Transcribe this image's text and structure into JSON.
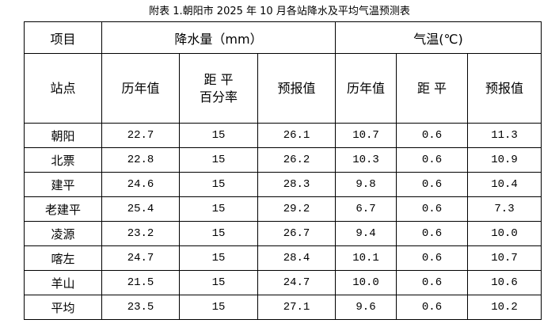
{
  "title": "附表 1.朝阳市 2025 年 10 月各站降水及平均气温预测表",
  "table": {
    "group_header": {
      "item": "项目",
      "precip": "降水量（mm）",
      "temp": "气温(℃)"
    },
    "columns": [
      "站点",
      "历年值",
      [
        "距 平",
        "百分率"
      ],
      "预报值",
      "历年值",
      "距 平",
      "预报值"
    ],
    "rows": [
      [
        "朝阳",
        "22.7",
        "15",
        "26.1",
        "10.7",
        "0.6",
        "11.3"
      ],
      [
        "北票",
        "22.8",
        "15",
        "26.2",
        "10.3",
        "0.6",
        "10.9"
      ],
      [
        "建平",
        "24.6",
        "15",
        "28.3",
        "9.8",
        "0.6",
        "10.4"
      ],
      [
        "老建平",
        "25.4",
        "15",
        "29.2",
        "6.7",
        "0.6",
        "7.3"
      ],
      [
        "凌源",
        "23.2",
        "15",
        "26.7",
        "9.4",
        "0.6",
        "10.0"
      ],
      [
        "喀左",
        "24.7",
        "15",
        "28.4",
        "10.1",
        "0.6",
        "10.7"
      ],
      [
        "羊山",
        "21.5",
        "15",
        "24.7",
        "10.0",
        "0.6",
        "10.6"
      ],
      [
        "平均",
        "23.5",
        "15",
        "27.1",
        "9.6",
        "0.6",
        "10.2"
      ]
    ]
  }
}
